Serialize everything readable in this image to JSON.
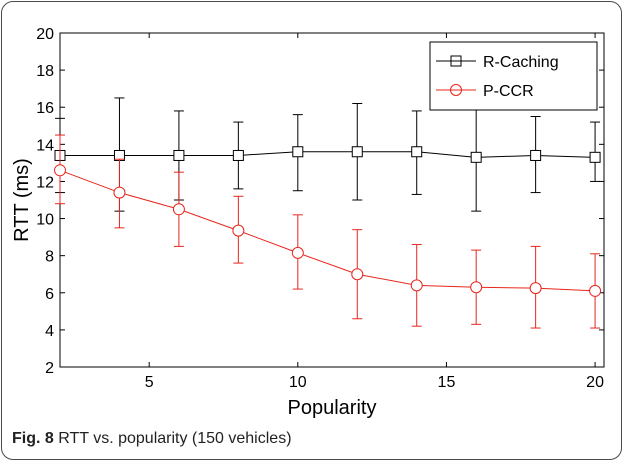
{
  "figure": {
    "caption_label": "Fig. 8",
    "caption_text": "RTT vs. popularity (150 vehicles)"
  },
  "chart_data": {
    "type": "line",
    "title": "",
    "xlabel": "Popularity",
    "ylabel": "RTT (ms)",
    "xlim": [
      2,
      20.3
    ],
    "ylim": [
      2,
      20
    ],
    "xticks": [
      5,
      10,
      15,
      20
    ],
    "yticks": [
      2,
      4,
      6,
      8,
      10,
      12,
      14,
      16,
      18,
      20
    ],
    "grid": false,
    "legend_position": "top-right",
    "x": [
      2,
      4,
      6,
      8,
      10,
      12,
      14,
      16,
      18,
      20
    ],
    "series": [
      {
        "name": "R-Caching",
        "color": "#000000",
        "marker": "square",
        "values": [
          13.4,
          13.4,
          13.4,
          13.4,
          13.6,
          13.6,
          13.6,
          13.3,
          13.4,
          13.3
        ],
        "err_low": [
          11.4,
          10.4,
          11.0,
          11.6,
          11.5,
          11.0,
          11.3,
          10.4,
          11.4,
          12.0
        ],
        "err_high": [
          15.4,
          16.5,
          15.8,
          15.2,
          15.6,
          16.2,
          15.8,
          16.3,
          15.5,
          15.2
        ]
      },
      {
        "name": "P-CCR",
        "color": "#e8261c",
        "marker": "circle",
        "values": [
          12.6,
          11.4,
          10.5,
          9.35,
          8.15,
          7.0,
          6.4,
          6.3,
          6.25,
          6.1
        ],
        "err_low": [
          10.8,
          9.5,
          8.5,
          7.6,
          6.2,
          4.6,
          4.2,
          4.3,
          4.1,
          4.1
        ],
        "err_high": [
          14.5,
          13.2,
          12.5,
          11.2,
          10.2,
          9.4,
          8.6,
          8.3,
          8.5,
          8.1
        ]
      }
    ]
  }
}
